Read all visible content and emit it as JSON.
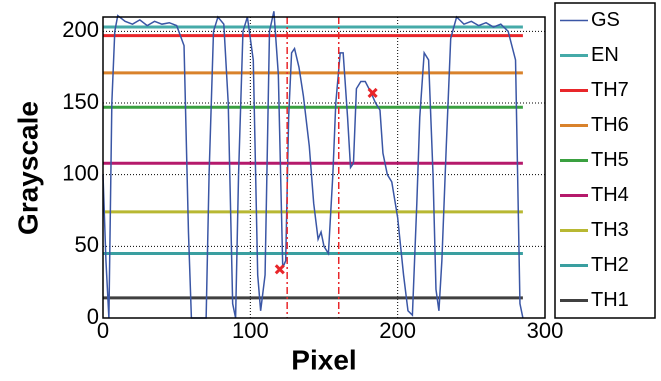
{
  "chart_data": {
    "type": "line",
    "xlabel": "Pixel",
    "ylabel": "Grayscale",
    "xlim": [
      0,
      300
    ],
    "ylim": [
      0,
      210
    ],
    "xticks": [
      0,
      100,
      200,
      300
    ],
    "yticks": [
      0,
      50,
      100,
      150,
      200
    ],
    "grid": true,
    "series": [
      {
        "name": "GS",
        "color": "#3a56a5",
        "x": [
          0,
          2,
          4,
          6,
          8,
          10,
          15,
          20,
          25,
          30,
          35,
          40,
          45,
          50,
          55,
          58,
          60,
          70,
          72,
          75,
          78,
          82,
          85,
          88,
          90,
          92,
          95,
          98,
          102,
          105,
          107,
          110,
          113,
          116,
          119,
          122,
          124,
          126,
          128,
          130,
          133,
          136,
          140,
          143,
          146,
          148,
          150,
          153,
          156,
          158,
          161,
          163,
          166,
          168,
          170,
          172,
          175,
          178,
          182,
          185,
          188,
          190,
          193,
          196,
          200,
          204,
          207,
          210,
          213,
          215,
          218,
          221,
          224,
          226,
          228,
          230,
          233,
          236,
          240,
          245,
          250,
          255,
          260,
          265,
          270,
          275,
          280,
          283,
          285
        ],
        "values": [
          100,
          40,
          0,
          150,
          200,
          211,
          207,
          205,
          208,
          204,
          207,
          205,
          206,
          204,
          190,
          60,
          0,
          0,
          100,
          200,
          210,
          205,
          150,
          10,
          0,
          100,
          200,
          210,
          180,
          30,
          5,
          30,
          200,
          214,
          170,
          35,
          40,
          140,
          185,
          188,
          175,
          155,
          120,
          80,
          55,
          60,
          50,
          45,
          100,
          150,
          185,
          185,
          140,
          105,
          108,
          160,
          165,
          165,
          157,
          150,
          145,
          115,
          100,
          95,
          70,
          30,
          5,
          2,
          80,
          140,
          185,
          180,
          100,
          20,
          5,
          40,
          120,
          195,
          210,
          205,
          207,
          204,
          206,
          203,
          205,
          200,
          180,
          10,
          0
        ]
      },
      {
        "name": "EN",
        "color": "#45aaa8",
        "x": [
          0,
          285
        ],
        "values": [
          203,
          203
        ]
      },
      {
        "name": "TH7",
        "color": "#e8262a",
        "x": [
          0,
          285
        ],
        "values": [
          197,
          197
        ]
      },
      {
        "name": "TH6",
        "color": "#d9822b",
        "x": [
          0,
          285
        ],
        "values": [
          171,
          171
        ]
      },
      {
        "name": "TH5",
        "color": "#3aa040",
        "x": [
          0,
          285
        ],
        "values": [
          147,
          147
        ]
      },
      {
        "name": "TH4",
        "color": "#b5196b",
        "x": [
          0,
          285
        ],
        "values": [
          108,
          108
        ]
      },
      {
        "name": "TH3",
        "color": "#b8b832",
        "x": [
          0,
          285
        ],
        "values": [
          74,
          74
        ]
      },
      {
        "name": "TH2",
        "color": "#3a9fa0",
        "x": [
          0,
          285
        ],
        "values": [
          45,
          45
        ]
      },
      {
        "name": "TH1",
        "color": "#404040",
        "x": [
          0,
          285
        ],
        "values": [
          14,
          14
        ]
      }
    ],
    "vlines": [
      125,
      160
    ],
    "vline_color": "#e8262a",
    "markers": {
      "color": "#e8262a",
      "x": [
        120,
        183
      ],
      "y": [
        34,
        157
      ]
    }
  }
}
